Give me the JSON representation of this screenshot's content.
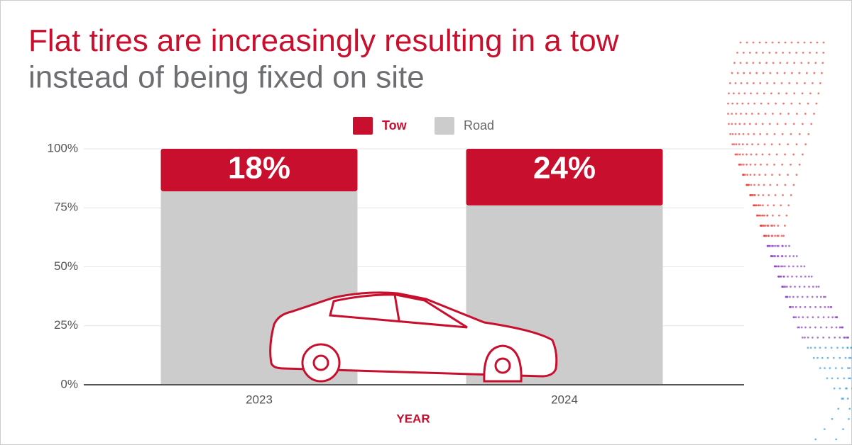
{
  "chart_data": {
    "type": "stacked-bar",
    "title": {
      "highlight": "Flat tires are increasingly resulting in a tow",
      "rest": "instead of being fixed on site"
    },
    "categories": [
      "2023",
      "2024"
    ],
    "x_label": "YEAR",
    "series": [
      {
        "name": "Tow",
        "color": "#c8102e",
        "values": [
          18,
          24
        ],
        "value_labels": [
          "18%",
          "24%"
        ]
      },
      {
        "name": "Road",
        "color": "#cccccc",
        "values": [
          82,
          76
        ]
      }
    ],
    "ylim": [
      0,
      100
    ],
    "yticks": [
      {
        "value": 0,
        "label": "0%"
      },
      {
        "value": 25,
        "label": "25%"
      },
      {
        "value": 50,
        "label": "50%"
      },
      {
        "value": 75,
        "label": "75%"
      },
      {
        "value": 100,
        "label": "100%"
      }
    ],
    "grid": true,
    "legend": "top"
  }
}
